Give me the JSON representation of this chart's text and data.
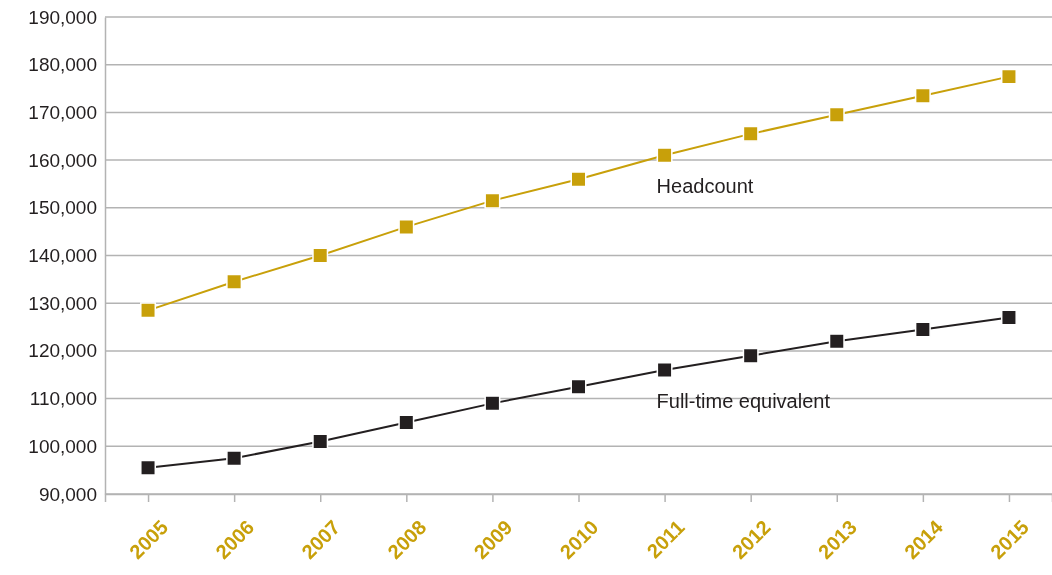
{
  "chart_data": {
    "type": "line",
    "categories": [
      "2005",
      "2006",
      "2007",
      "2008",
      "2009",
      "2010",
      "2011",
      "2012",
      "2013",
      "2014",
      "2015"
    ],
    "series": [
      {
        "name": "Headcount",
        "color": "#c8a00a",
        "values": [
          128500,
          134500,
          140000,
          146000,
          151500,
          156000,
          161000,
          165500,
          169500,
          173500,
          177500
        ]
      },
      {
        "name": "Full-time equivalent",
        "color": "#231f20",
        "values": [
          95500,
          97500,
          101000,
          105000,
          109000,
          112500,
          116000,
          119000,
          122000,
          124500,
          127000
        ]
      }
    ],
    "ylim": [
      90000,
      190000
    ],
    "yticks": [
      {
        "value": 90000,
        "label": "90,000"
      },
      {
        "value": 100000,
        "label": "100,000"
      },
      {
        "value": 110000,
        "label": "110,000"
      },
      {
        "value": 120000,
        "label": "120,000"
      },
      {
        "value": 130000,
        "label": "130,000"
      },
      {
        "value": 140000,
        "label": "140,000"
      },
      {
        "value": 150000,
        "label": "150,000"
      },
      {
        "value": 160000,
        "label": "160,000"
      },
      {
        "value": 170000,
        "label": "170,000"
      },
      {
        "value": 180000,
        "label": "180,000"
      },
      {
        "value": 190000,
        "label": "190,000"
      }
    ],
    "grid": "y",
    "marker": "square",
    "line_style": "solid"
  }
}
